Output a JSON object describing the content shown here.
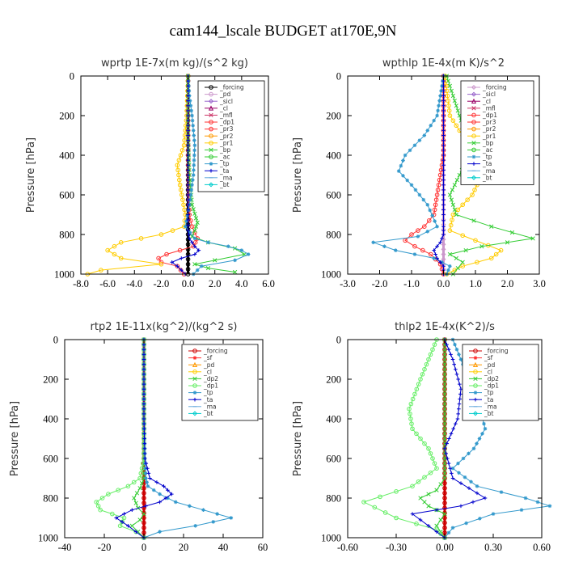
{
  "figure_title": "cam144_lscale  BUDGET at170E,9N",
  "chart_data": [
    {
      "type": "line",
      "title": "wprtp  1E-7x(m kg)/(s^2 kg)",
      "ylabel": "Pressure [hPa]",
      "xlabel": "",
      "xlim": [
        -8,
        6
      ],
      "ylim": [
        1000,
        0
      ],
      "xticks": [
        "-8.0",
        "-6.0",
        "-4.0",
        "-2.0",
        "0.0",
        "2.0",
        "4.0",
        "6.0"
      ],
      "yticks": [
        "0",
        "200",
        "400",
        "600",
        "800",
        "1000"
      ],
      "legend_position": "top-right",
      "series": [
        {
          "name": "_forcing",
          "color": "#000000",
          "marker": "circle",
          "x": [
            0,
            0,
            0,
            0,
            0,
            0,
            0,
            0,
            0,
            0,
            0
          ],
          "y": [
            0,
            100,
            200,
            300,
            400,
            500,
            600,
            700,
            800,
            900,
            1000
          ]
        },
        {
          "name": "_pd",
          "color": "#cc99cc",
          "marker": "circle",
          "x": [],
          "y": []
        },
        {
          "name": "_sicl",
          "color": "#9966cc",
          "marker": "diamond",
          "x": [],
          "y": []
        },
        {
          "name": "_cl",
          "color": "#990066",
          "marker": "triangle",
          "x": [],
          "y": []
        },
        {
          "name": "_mfl",
          "color": "#cc3366",
          "marker": "x",
          "x": [],
          "y": []
        },
        {
          "name": "_dp1",
          "color": "#ff3333",
          "marker": "circle",
          "x": [
            0,
            0,
            0,
            0.05,
            0.1,
            0.3,
            0.7,
            0.4,
            -0.6,
            -1.6,
            -2.2,
            -2.0,
            -0.8,
            -0.3
          ],
          "y": [
            0,
            200,
            400,
            600,
            700,
            760,
            820,
            860,
            880,
            900,
            920,
            940,
            960,
            1000
          ]
        },
        {
          "name": "_pr3",
          "color": "#ff3333",
          "marker": "circle",
          "x": [],
          "y": []
        },
        {
          "name": "_pr2",
          "color": "#ff9900",
          "marker": "circle",
          "x": [],
          "y": []
        },
        {
          "name": "_pr1",
          "color": "#ffcc00",
          "marker": "circle",
          "x": [
            0,
            -0.1,
            -0.3,
            -0.8,
            -0.6,
            -0.2,
            -0.3,
            -2.0,
            -5.0,
            -6.0,
            -5.0,
            -2.0,
            -6.5,
            -7.5
          ],
          "y": [
            0,
            200,
            350,
            450,
            550,
            700,
            760,
            800,
            840,
            880,
            920,
            950,
            980,
            1000
          ]
        },
        {
          "name": "_bp",
          "color": "#33cc33",
          "marker": "x",
          "x": [
            0,
            0,
            0.1,
            0.3,
            0.7,
            0.5,
            0.3,
            1.5,
            3.5,
            4.2,
            2.0,
            0.5,
            1.5,
            3.5
          ],
          "y": [
            0,
            300,
            500,
            650,
            740,
            780,
            810,
            840,
            870,
            900,
            930,
            950,
            970,
            990
          ]
        },
        {
          "name": "_ac",
          "color": "#33cc33",
          "marker": "circle",
          "x": [],
          "y": []
        },
        {
          "name": "_tp",
          "color": "#3399cc",
          "marker": "star",
          "x": [
            0,
            0.1,
            0.3,
            0.5,
            0.4,
            0.1,
            -0.2,
            0.5,
            1.5,
            3.0,
            4.0,
            4.5,
            3.5,
            1.0,
            0.4
          ],
          "y": [
            0,
            100,
            200,
            350,
            500,
            650,
            760,
            820,
            840,
            860,
            880,
            900,
            930,
            960,
            1000
          ]
        },
        {
          "name": "_ta",
          "color": "#0000cc",
          "marker": "plus",
          "x": [
            0,
            0,
            0,
            0,
            0,
            0,
            0.1,
            0.5,
            0.8,
            0.5,
            -0.5,
            -1.2,
            -0.8,
            -0.2
          ],
          "y": [
            0,
            200,
            400,
            600,
            700,
            780,
            820,
            860,
            880,
            900,
            920,
            940,
            960,
            1000
          ]
        },
        {
          "name": "_ma",
          "color": "#66aadd",
          "marker": "dash",
          "x": [],
          "y": []
        },
        {
          "name": "_bt",
          "color": "#00cccc",
          "marker": "diamond",
          "x": [],
          "y": []
        }
      ]
    },
    {
      "type": "line",
      "title": "wpthlp  1E-4x(m K)/s^2",
      "ylabel": "Pressure [hPa]",
      "xlabel": "",
      "xlim": [
        -3,
        3
      ],
      "ylim": [
        1000,
        0
      ],
      "xticks": [
        "-3.0",
        "-2.0",
        "-1.0",
        "0.0",
        "1.0",
        "2.0",
        "3.0"
      ],
      "yticks": [
        "0",
        "200",
        "400",
        "600",
        "800",
        "1000"
      ],
      "legend_position": "top-right",
      "series": [
        {
          "name": "_forcing",
          "color": "#cc99cc",
          "marker": "diamond",
          "x": [
            0,
            0,
            0,
            0,
            0,
            0,
            0,
            0,
            0,
            0,
            0
          ],
          "y": [
            0,
            100,
            200,
            300,
            400,
            500,
            600,
            700,
            800,
            900,
            1000
          ]
        },
        {
          "name": "_sicl",
          "color": "#9966cc",
          "marker": "diamond",
          "x": [],
          "y": []
        },
        {
          "name": "_cl",
          "color": "#990066",
          "marker": "triangle",
          "x": [],
          "y": []
        },
        {
          "name": "_mfl",
          "color": "#cc3366",
          "marker": "x",
          "x": [],
          "y": []
        },
        {
          "name": "_dp1",
          "color": "#ff3333",
          "marker": "circle",
          "x": [
            0,
            0,
            0,
            -0.1,
            -0.2,
            -0.3,
            -0.6,
            -1.0,
            -1.2,
            -0.9,
            -0.4,
            -0.1,
            0
          ],
          "y": [
            0,
            200,
            400,
            500,
            600,
            700,
            760,
            800,
            830,
            860,
            900,
            950,
            1000
          ]
        },
        {
          "name": "_pr3",
          "color": "#ff3333",
          "marker": "circle",
          "x": [],
          "y": []
        },
        {
          "name": "_pr2",
          "color": "#ff9900",
          "marker": "circle",
          "x": [],
          "y": []
        },
        {
          "name": "_pr1",
          "color": "#ffcc00",
          "marker": "circle",
          "x": [
            0.05,
            0.2,
            0.6,
            1.0,
            1.2,
            0.9,
            0.3,
            0.2,
            1.0,
            1.8,
            1.5,
            0.6,
            0.1
          ],
          "y": [
            0,
            200,
            300,
            400,
            500,
            600,
            700,
            780,
            830,
            880,
            920,
            960,
            1000
          ]
        },
        {
          "name": "_bp",
          "color": "#33cc33",
          "marker": "x",
          "x": [
            0.1,
            0.3,
            0.5,
            0.7,
            0.8,
            0.5,
            0.2,
            0.4,
            1.5,
            2.8,
            1.2,
            0.2,
            0.6,
            0.3
          ],
          "y": [
            0,
            100,
            200,
            300,
            400,
            500,
            600,
            700,
            760,
            820,
            860,
            900,
            940,
            1000
          ]
        },
        {
          "name": "_ac",
          "color": "#33cc33",
          "marker": "circle",
          "x": [],
          "y": []
        },
        {
          "name": "_tp",
          "color": "#3399cc",
          "marker": "star",
          "x": [
            0,
            -0.2,
            -0.6,
            -1.2,
            -1.4,
            -1.0,
            -0.5,
            -0.2,
            -0.8,
            -2.2,
            -1.5,
            -0.3,
            0.2,
            0.1
          ],
          "y": [
            0,
            200,
            300,
            400,
            480,
            550,
            650,
            760,
            810,
            840,
            880,
            920,
            960,
            1000
          ]
        },
        {
          "name": "_ta",
          "color": "#0000cc",
          "marker": "plus",
          "x": [
            0,
            0,
            0,
            0,
            0,
            0,
            0,
            -0.1,
            -0.3,
            -0.2,
            0,
            0
          ],
          "y": [
            0,
            200,
            400,
            600,
            700,
            760,
            800,
            840,
            880,
            920,
            960,
            1000
          ]
        },
        {
          "name": "_ma",
          "color": "#66aadd",
          "marker": "dash",
          "x": [],
          "y": []
        },
        {
          "name": "_bt",
          "color": "#00cccc",
          "marker": "diamond",
          "x": [],
          "y": []
        }
      ]
    },
    {
      "type": "line",
      "title": "rtp2  1E-11x(kg^2)/(kg^2 s)",
      "ylabel": "Pressure [hPa]",
      "xlabel": "",
      "xlim": [
        -40,
        60
      ],
      "ylim": [
        1000,
        0
      ],
      "xticks": [
        "-40",
        "-20",
        "0",
        "20",
        "40",
        "60"
      ],
      "yticks": [
        "0",
        "200",
        "400",
        "600",
        "800",
        "1000"
      ],
      "legend_position": "top-right",
      "series": [
        {
          "name": "_forcing",
          "color": "#cc0000",
          "marker": "circle",
          "x": [
            0,
            0,
            0,
            0,
            0,
            0,
            0,
            0,
            0,
            0,
            0
          ],
          "y": [
            0,
            100,
            200,
            300,
            400,
            500,
            600,
            700,
            800,
            900,
            1000
          ]
        },
        {
          "name": "_sf",
          "color": "#ff3333",
          "marker": "star",
          "x": [],
          "y": []
        },
        {
          "name": "_pd",
          "color": "#ff9900",
          "marker": "triangle",
          "x": [],
          "y": []
        },
        {
          "name": "_cl",
          "color": "#ffcc00",
          "marker": "circle",
          "x": [],
          "y": []
        },
        {
          "name": "_dp2",
          "color": "#33cc33",
          "marker": "x",
          "x": [
            0,
            0,
            0,
            0,
            0,
            -2,
            -5,
            -3,
            0,
            -2,
            -6,
            -3,
            0
          ],
          "y": [
            0,
            200,
            400,
            600,
            700,
            750,
            800,
            850,
            880,
            910,
            940,
            970,
            1000
          ]
        },
        {
          "name": "_dp1",
          "color": "#66ee66",
          "marker": "circle",
          "x": [
            0,
            0,
            0,
            0,
            -2,
            -8,
            -18,
            -24,
            -22,
            -10,
            -12,
            -4,
            0
          ],
          "y": [
            0,
            200,
            400,
            600,
            700,
            740,
            780,
            820,
            860,
            900,
            940,
            970,
            1000
          ]
        },
        {
          "name": "_tp",
          "color": "#3399cc",
          "marker": "star",
          "x": [
            0,
            0,
            0,
            0.5,
            1,
            2,
            8,
            16,
            30,
            44,
            26,
            8,
            0
          ],
          "y": [
            0,
            200,
            400,
            600,
            700,
            740,
            780,
            820,
            860,
            900,
            940,
            970,
            1000
          ]
        },
        {
          "name": "_ta",
          "color": "#0000cc",
          "marker": "plus",
          "x": [
            0,
            0,
            0,
            0.5,
            3,
            10,
            14,
            8,
            -6,
            -14,
            -8,
            0
          ],
          "y": [
            0,
            200,
            400,
            600,
            700,
            740,
            780,
            820,
            860,
            900,
            940,
            1000
          ]
        },
        {
          "name": "_ma",
          "color": "#66aadd",
          "marker": "dash",
          "x": [],
          "y": []
        },
        {
          "name": "_bt",
          "color": "#00cccc",
          "marker": "diamond",
          "x": [],
          "y": []
        }
      ]
    },
    {
      "type": "line",
      "title": "thlp2  1E-4x(K^2)/s",
      "ylabel": "Pressure [hPa]",
      "xlabel": "",
      "xlim": [
        -0.6,
        0.6
      ],
      "ylim": [
        1000,
        0
      ],
      "xticks": [
        "-0.60",
        "-0.30",
        "0.00",
        "0.30",
        "0.60"
      ],
      "yticks": [
        "0",
        "200",
        "400",
        "600",
        "800",
        "1000"
      ],
      "legend_position": "top-right",
      "series": [
        {
          "name": "_forcing",
          "color": "#cc0000",
          "marker": "circle",
          "x": [
            0,
            0,
            0,
            0,
            0,
            0,
            0,
            0,
            0,
            0,
            0
          ],
          "y": [
            0,
            100,
            200,
            300,
            400,
            500,
            600,
            700,
            800,
            900,
            1000
          ]
        },
        {
          "name": "_sf",
          "color": "#ff3333",
          "marker": "star",
          "x": [],
          "y": []
        },
        {
          "name": "_pd",
          "color": "#ff9900",
          "marker": "triangle",
          "x": [],
          "y": []
        },
        {
          "name": "_cl",
          "color": "#ffcc00",
          "marker": "circle",
          "x": [],
          "y": []
        },
        {
          "name": "_dp2",
          "color": "#33cc33",
          "marker": "x",
          "x": [
            0,
            0,
            0,
            0,
            0,
            -0.05,
            -0.15,
            -0.1,
            0,
            -0.05,
            0
          ],
          "y": [
            0,
            200,
            400,
            600,
            700,
            760,
            800,
            840,
            880,
            940,
            1000
          ]
        },
        {
          "name": "_dp1",
          "color": "#66ee66",
          "marker": "circle",
          "x": [
            -0.05,
            -0.1,
            -0.15,
            -0.22,
            -0.2,
            -0.1,
            -0.05,
            -0.2,
            -0.5,
            -0.3,
            -0.05,
            0
          ],
          "y": [
            0,
            100,
            200,
            350,
            450,
            550,
            650,
            740,
            820,
            900,
            960,
            1000
          ]
        },
        {
          "name": "_tp",
          "color": "#3399cc",
          "marker": "star",
          "x": [
            0.05,
            0.1,
            0.15,
            0.22,
            0.25,
            0.18,
            0.05,
            0.2,
            0.5,
            0.65,
            0.3,
            0.05,
            0
          ],
          "y": [
            0,
            100,
            200,
            350,
            450,
            550,
            650,
            740,
            800,
            840,
            880,
            950,
            1000
          ]
        },
        {
          "name": "_ta",
          "color": "#0000cc",
          "marker": "plus",
          "x": [
            0,
            0.05,
            0.1,
            0.08,
            0,
            0.05,
            0.25,
            0.1,
            -0.2,
            -0.1,
            0
          ],
          "y": [
            0,
            100,
            250,
            400,
            550,
            700,
            800,
            840,
            880,
            940,
            1000
          ]
        },
        {
          "name": "_ma",
          "color": "#66aadd",
          "marker": "dash",
          "x": [],
          "y": []
        },
        {
          "name": "_bt",
          "color": "#00cccc",
          "marker": "diamond",
          "x": [],
          "y": []
        }
      ]
    }
  ]
}
